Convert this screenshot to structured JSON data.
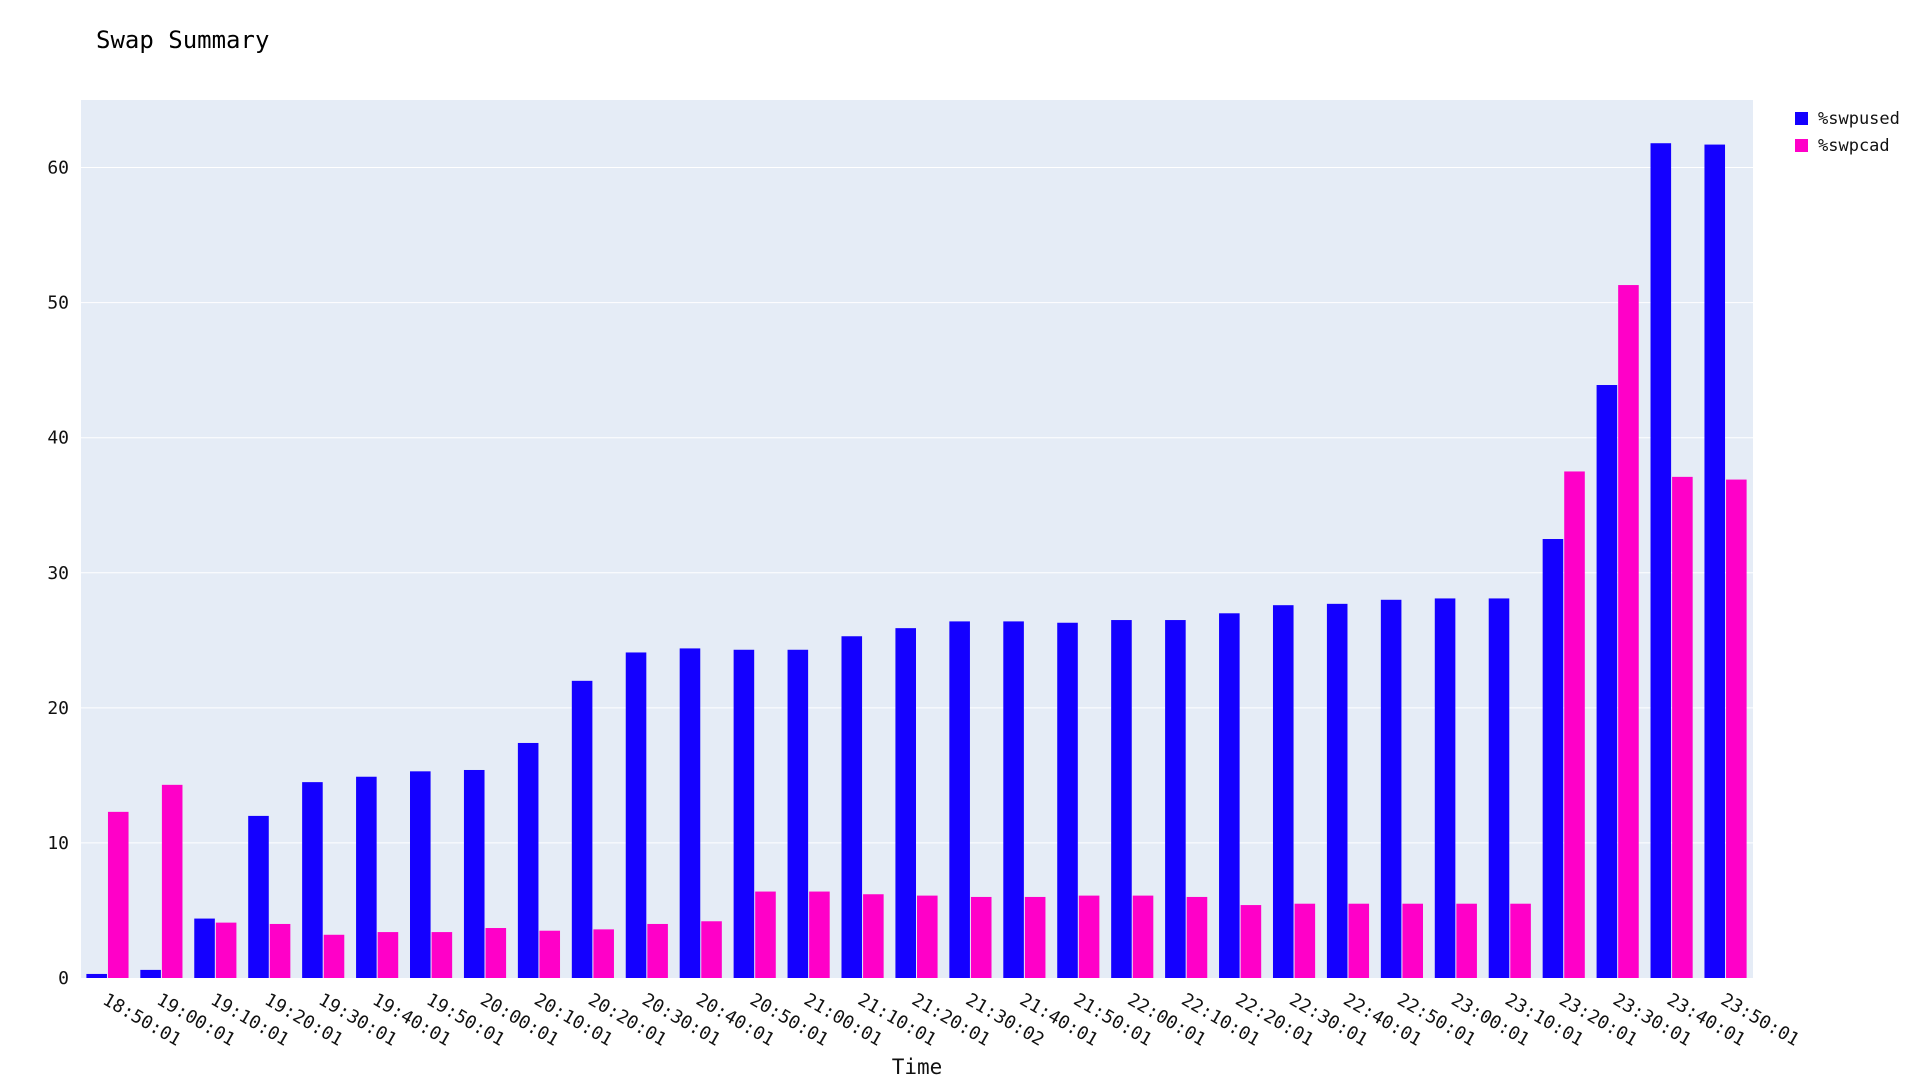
{
  "title": "Swap Summary",
  "chart_data": {
    "type": "bar",
    "title": "Swap Summary",
    "xlabel": "Time",
    "ylabel": "",
    "ylim": [
      0,
      65
    ],
    "yticks": [
      0,
      10,
      20,
      30,
      40,
      50,
      60
    ],
    "grid": true,
    "legend_position": "top-right",
    "categories": [
      "18:50:01",
      "19:00:01",
      "19:10:01",
      "19:20:01",
      "19:30:01",
      "19:40:01",
      "19:50:01",
      "20:00:01",
      "20:10:01",
      "20:20:01",
      "20:30:01",
      "20:40:01",
      "20:50:01",
      "21:00:01",
      "21:10:01",
      "21:20:01",
      "21:30:02",
      "21:40:01",
      "21:50:01",
      "22:00:01",
      "22:10:01",
      "22:20:01",
      "22:30:01",
      "22:40:01",
      "22:50:01",
      "23:00:01",
      "23:10:01",
      "23:20:01",
      "23:30:01",
      "23:40:01",
      "23:50:01"
    ],
    "series": [
      {
        "name": "%swpused",
        "color": "#1400ff",
        "values": [
          0.3,
          0.6,
          4.4,
          12.0,
          14.5,
          14.9,
          15.3,
          15.4,
          17.4,
          22.0,
          24.1,
          24.4,
          24.3,
          24.3,
          25.3,
          25.9,
          26.4,
          26.4,
          26.3,
          26.5,
          26.5,
          27.0,
          27.6,
          27.7,
          28.0,
          28.1,
          28.1,
          32.5,
          43.9,
          61.8,
          61.7
        ]
      },
      {
        "name": "%swpcad",
        "color": "#ff00c8",
        "values": [
          12.3,
          14.3,
          4.1,
          4.0,
          3.2,
          3.4,
          3.4,
          3.7,
          3.5,
          3.6,
          4.0,
          4.2,
          6.4,
          6.4,
          6.2,
          6.1,
          6.0,
          6.0,
          6.1,
          6.1,
          6.0,
          5.4,
          5.5,
          5.5,
          5.5,
          5.5,
          5.5,
          37.5,
          51.3,
          37.1,
          36.9
        ]
      }
    ]
  }
}
